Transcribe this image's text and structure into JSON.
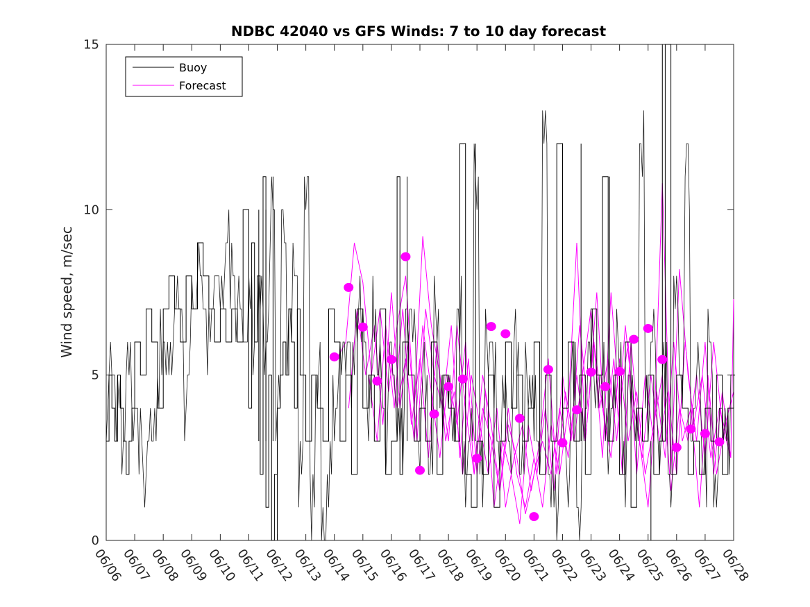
{
  "chart_data": {
    "type": "line",
    "title": "NDBC 42040 vs GFS Winds: 7 to 10 day forecast",
    "xlabel": "",
    "ylabel": "Wind speed, m/sec",
    "xlim": [
      "06/06",
      "06/28"
    ],
    "ylim": [
      0,
      15
    ],
    "x_tick_labels": [
      "06/06",
      "06/07",
      "06/08",
      "06/09",
      "06/10",
      "06/11",
      "06/12",
      "06/13",
      "06/14",
      "06/15",
      "06/16",
      "06/17",
      "06/18",
      "06/19",
      "06/20",
      "06/21",
      "06/22",
      "06/23",
      "06/24",
      "06/25",
      "06/26",
      "06/27",
      "06/28"
    ],
    "y_ticks": [
      0,
      5,
      10,
      15
    ],
    "grid": false,
    "legend": {
      "position": "top-left",
      "entries": [
        "Buoy",
        "Forecast"
      ]
    },
    "colors": {
      "buoy": "#000000",
      "forecast": "#ff00ff"
    },
    "series": [
      {
        "name": "Buoy",
        "style": "step",
        "x_days": [
          0.0,
          0.1,
          0.2,
          0.3,
          0.4,
          0.5,
          0.6,
          0.7,
          0.8,
          0.9,
          1.0,
          1.2,
          1.4,
          1.6,
          1.8,
          2.0,
          2.2,
          2.4,
          2.6,
          2.8,
          3.0,
          3.2,
          3.4,
          3.6,
          3.8,
          4.0,
          4.2,
          4.4,
          4.6,
          4.8,
          5.0,
          5.1,
          5.2,
          5.3,
          5.4,
          5.5,
          5.6,
          5.7,
          5.8,
          5.9,
          6.0,
          6.1,
          6.2,
          6.3,
          6.4,
          6.5,
          6.6,
          6.7,
          6.8,
          7.0,
          7.2,
          7.4,
          7.6,
          7.8,
          8.0,
          8.2,
          8.4,
          8.6,
          8.8,
          9.0,
          9.2,
          9.4,
          9.6,
          9.8,
          10.0,
          10.2,
          10.3,
          10.4,
          10.6,
          10.8,
          11.0,
          11.2,
          11.4,
          11.6,
          11.8,
          12.0,
          12.2,
          12.4,
          12.6,
          12.8,
          13.0,
          13.2,
          13.4,
          13.6,
          13.8,
          14.0,
          14.2,
          14.4,
          14.6,
          14.8,
          15.0,
          15.2,
          15.4,
          15.6,
          15.8,
          16.0,
          16.2,
          16.4,
          16.6,
          16.8,
          17.0,
          17.2,
          17.4,
          17.6,
          17.8,
          18.0,
          18.2,
          18.4,
          18.6,
          18.8,
          19.0,
          19.2,
          19.4,
          19.6,
          19.8,
          20.0,
          20.2,
          20.4,
          20.6,
          20.8,
          21.0,
          21.2,
          21.4,
          21.6,
          21.8,
          22.0
        ],
        "values": [
          3,
          5,
          4,
          3,
          5,
          4,
          3,
          2,
          3,
          4,
          6,
          5,
          7,
          6,
          4,
          7,
          8,
          7,
          6,
          8,
          7,
          9,
          8,
          7,
          6,
          7,
          6,
          7,
          6,
          10,
          4,
          9,
          6,
          8,
          2,
          11,
          1,
          5,
          0,
          2,
          4,
          5,
          6,
          5,
          7,
          6,
          4,
          7,
          5,
          3,
          5,
          4,
          3,
          7,
          6,
          3,
          5,
          2,
          7,
          4,
          5,
          3,
          7,
          2,
          3,
          11,
          2,
          6,
          5,
          3,
          4,
          3,
          6,
          2,
          5,
          4,
          3,
          12,
          2,
          1,
          3,
          2,
          5,
          1,
          3,
          6,
          4,
          5,
          3,
          4,
          6,
          2,
          5,
          3,
          12,
          4,
          6,
          3,
          5,
          2,
          7,
          5,
          11,
          3,
          5,
          2,
          6,
          1,
          4,
          3,
          5,
          2,
          3,
          15,
          2,
          5,
          4,
          2,
          3,
          2,
          4,
          3,
          5,
          2,
          4,
          5
        ],
        "spikes": [
          [
            5.35,
            10
          ],
          [
            5.6,
            10
          ],
          [
            5.85,
            11
          ],
          [
            10.55,
            11
          ],
          [
            12.95,
            12
          ],
          [
            16.65,
            12
          ],
          [
            17.65,
            11
          ],
          [
            19.5,
            15
          ],
          [
            6.0,
            0
          ],
          [
            19.1,
            0
          ]
        ]
      },
      {
        "name": "Forecast",
        "style": "line",
        "x_days": [
          8.1,
          8.4,
          8.7,
          9.0,
          9.3,
          9.6,
          9.9,
          10.2,
          10.5,
          10.8,
          11.1,
          11.4,
          11.7,
          12.0,
          12.3,
          12.6,
          12.9,
          13.2,
          13.5,
          13.8,
          14.1,
          14.4,
          14.7,
          15.0,
          15.3,
          15.6,
          15.9,
          16.2,
          16.5,
          16.8,
          17.1,
          17.4,
          17.7,
          18.0,
          18.3,
          18.6,
          18.9,
          19.2,
          19.5,
          19.8,
          20.1,
          20.4,
          20.7,
          21.0,
          21.3,
          21.6,
          21.9,
          22.0
        ],
        "values": [
          5.5,
          6.0,
          9.0,
          7.8,
          5.0,
          7.0,
          4.5,
          6.5,
          8.0,
          4.0,
          9.2,
          6.5,
          5.0,
          3.0,
          6.5,
          4.0,
          2.0,
          5.0,
          3.5,
          1.5,
          4.0,
          2.0,
          1.0,
          2.5,
          1.0,
          3.5,
          2.0,
          4.0,
          9.0,
          3.0,
          6.0,
          2.5,
          7.5,
          4.0,
          6.0,
          2.0,
          5.0,
          3.0,
          10.8,
          2.0,
          8.2,
          5.0,
          3.0,
          6.0,
          2.0,
          4.5,
          2.5,
          7.3
        ]
      },
      {
        "name": "",
        "style": "line",
        "x_days": [
          8.5,
          8.8,
          9.1,
          9.4,
          9.7,
          10.0,
          10.3,
          10.6,
          10.9,
          11.2,
          11.5,
          11.8,
          12.1,
          12.4,
          12.7,
          13.0,
          13.3,
          13.6,
          13.9,
          14.2,
          14.5,
          14.8,
          15.1,
          15.4,
          15.7,
          16.0,
          16.3,
          16.6,
          16.9,
          17.2,
          17.5,
          17.8,
          18.1,
          18.4,
          18.7,
          19.0,
          19.3,
          19.6,
          19.9,
          20.2,
          20.5,
          20.8,
          21.1,
          21.4,
          21.7,
          22.0
        ],
        "values": [
          4.0,
          7.0,
          5.0,
          6.5,
          3.5,
          7.5,
          4.0,
          6.0,
          3.0,
          7.0,
          5.0,
          4.0,
          6.5,
          2.5,
          5.5,
          2.0,
          4.5,
          1.0,
          3.0,
          2.0,
          0.5,
          3.5,
          2.0,
          4.0,
          1.5,
          5.0,
          3.0,
          6.5,
          4.0,
          7.5,
          3.0,
          5.5,
          2.0,
          6.0,
          3.0,
          1.0,
          4.5,
          2.5,
          6.0,
          3.0,
          4.0,
          1.0,
          5.0,
          2.0,
          3.5,
          4.5
        ]
      },
      {
        "name": "",
        "style": "line",
        "x_days": [
          9.2,
          9.5,
          9.8,
          10.1,
          10.4,
          10.7,
          11.0,
          11.3,
          11.6,
          11.9,
          12.2,
          12.5,
          12.8,
          13.1,
          13.4,
          13.7,
          14.0,
          14.3,
          14.6,
          14.9,
          15.2,
          15.5,
          15.8,
          16.1,
          16.4,
          16.7,
          17.0,
          17.3,
          17.6,
          17.9,
          18.2,
          18.5,
          18.8,
          19.1,
          19.4,
          19.7,
          20.0,
          20.3,
          20.6,
          20.9,
          21.2,
          21.5,
          21.8
        ],
        "values": [
          5.0,
          3.0,
          6.5,
          4.0,
          7.0,
          3.5,
          5.5,
          2.5,
          6.0,
          3.0,
          4.5,
          2.0,
          5.0,
          3.5,
          2.0,
          4.0,
          1.0,
          2.5,
          3.5,
          1.5,
          3.0,
          5.5,
          2.0,
          4.5,
          3.0,
          5.0,
          7.0,
          4.0,
          5.5,
          3.0,
          6.5,
          4.0,
          2.5,
          5.0,
          3.0,
          4.5,
          2.0,
          6.0,
          3.5,
          5.0,
          2.5,
          4.0,
          3.0
        ]
      },
      {
        "name": "",
        "style": "line",
        "x_days": [
          9.9,
          10.2,
          10.5,
          10.8,
          11.1,
          11.4,
          11.7,
          12.0,
          12.3,
          12.6,
          12.9,
          13.2,
          13.5,
          13.8,
          14.1,
          14.4,
          14.7,
          15.0,
          15.3,
          15.6,
          15.9,
          16.2,
          16.5,
          16.8,
          17.1,
          17.4,
          17.7,
          18.0,
          18.3,
          18.6,
          18.9,
          19.2,
          19.5,
          19.8,
          20.1,
          20.4,
          20.7,
          21.0,
          21.3,
          21.6,
          21.9
        ],
        "values": [
          6.0,
          4.0,
          5.5,
          3.0,
          6.5,
          4.5,
          2.5,
          5.0,
          3.5,
          6.0,
          2.0,
          4.0,
          3.0,
          1.5,
          3.5,
          2.5,
          0.8,
          2.0,
          3.0,
          2.0,
          4.0,
          2.5,
          5.0,
          3.0,
          6.0,
          4.0,
          2.5,
          5.5,
          3.0,
          4.5,
          2.0,
          3.5,
          5.0,
          1.5,
          4.0,
          3.0,
          5.0,
          2.5,
          6.0,
          3.5,
          2.5
        ]
      }
    ],
    "forecast_points": {
      "x_days": [
        8.0,
        8.5,
        9.0,
        9.5,
        10.0,
        10.5,
        11.0,
        11.5,
        12.0,
        12.5,
        13.0,
        13.5,
        14.0,
        14.5,
        15.0,
        15.5,
        16.0,
        16.5,
        17.0,
        17.5,
        18.0,
        18.5,
        19.0,
        19.5,
        20.0,
        20.5,
        21.0,
        21.5
      ],
      "values": [
        5.55,
        7.65,
        6.45,
        4.82,
        5.47,
        8.58,
        2.12,
        3.82,
        4.65,
        4.88,
        2.48,
        6.47,
        6.25,
        3.69,
        0.72,
        5.17,
        2.95,
        3.95,
        5.09,
        4.65,
        5.11,
        6.08,
        6.41,
        5.47,
        2.81,
        3.37,
        3.23,
        2.98
      ]
    }
  }
}
